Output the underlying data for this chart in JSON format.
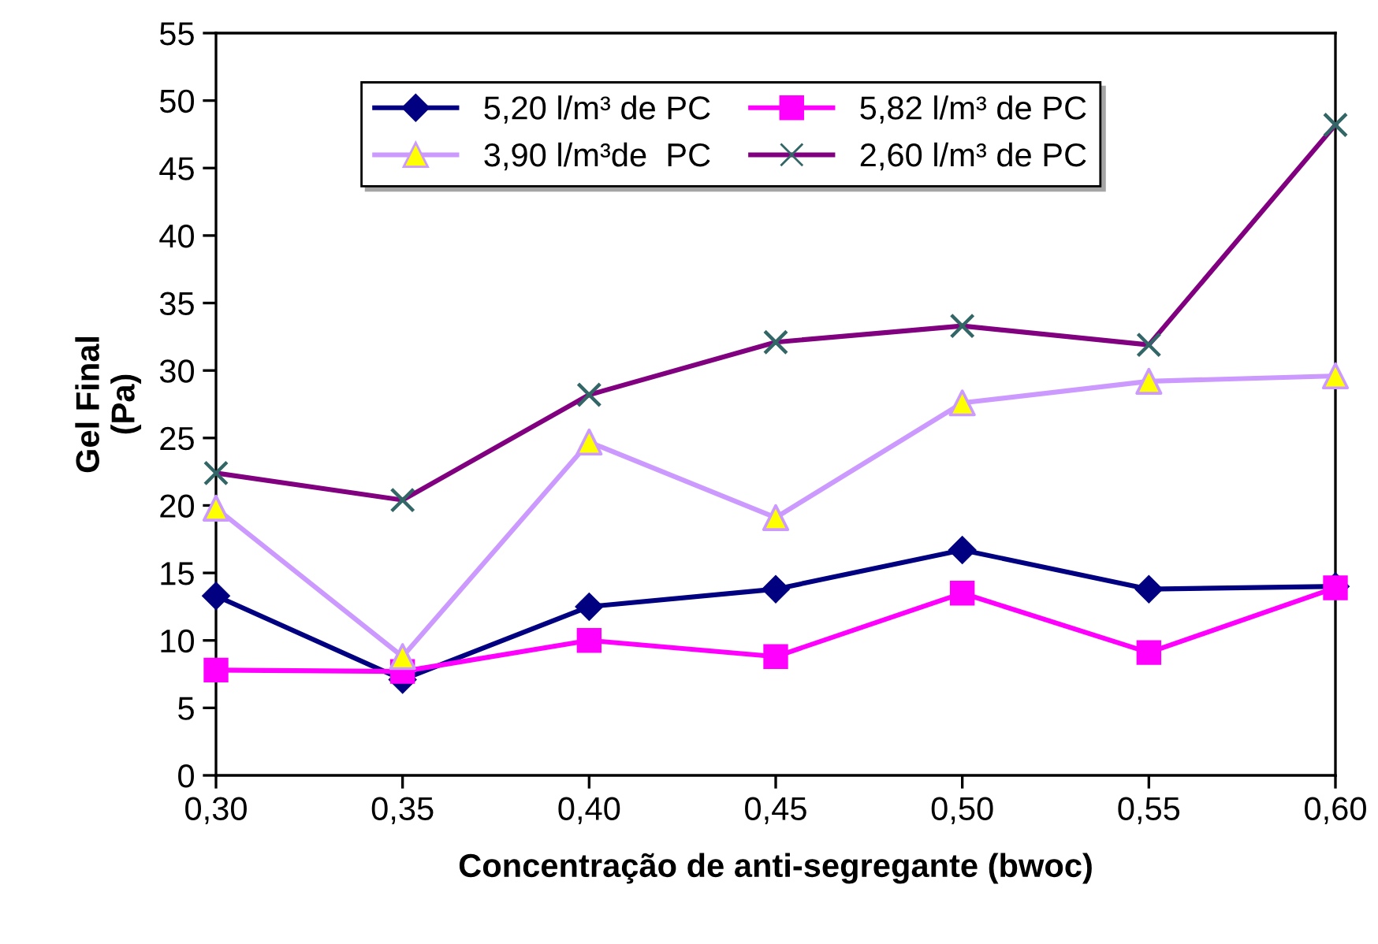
{
  "chart_data": {
    "type": "line",
    "xlabel": "Concentração de anti-segregante (bwoc)",
    "ylabel": "Gel Final\n(Pa)",
    "x": [
      0.3,
      0.35,
      0.4,
      0.45,
      0.5,
      0.55,
      0.6
    ],
    "xlim": [
      0.3,
      0.6
    ],
    "xticks": [
      {
        "value": 0.3,
        "label": "0,30"
      },
      {
        "value": 0.35,
        "label": "0,35"
      },
      {
        "value": 0.4,
        "label": "0,40"
      },
      {
        "value": 0.45,
        "label": "0,45"
      },
      {
        "value": 0.5,
        "label": "0,50"
      },
      {
        "value": 0.55,
        "label": "0,55"
      },
      {
        "value": 0.6,
        "label": "0,60"
      }
    ],
    "ylim": [
      0,
      55
    ],
    "yticks": [
      0,
      5,
      10,
      15,
      20,
      25,
      30,
      35,
      40,
      45,
      50,
      55
    ],
    "grid": false,
    "legend": "top",
    "line_style": "solid",
    "series": [
      {
        "name": "5,20 l/m³ de PC",
        "color": "#000080",
        "marker": "diamond",
        "values": [
          13.3,
          7.1,
          12.5,
          13.8,
          16.7,
          13.8,
          14.0
        ]
      },
      {
        "name": "3,90 l/m³de  PC",
        "color": "#cc99ff",
        "marker": "triangle",
        "colors": [
          "#ffff00",
          "#ffff00",
          "#ffff00",
          "#ffff00",
          "#ffff00",
          "#ffff00",
          "#ffff00"
        ],
        "values": [
          19.8,
          8.8,
          24.7,
          19.1,
          27.6,
          29.2,
          29.6
        ]
      },
      {
        "name": "5,82 l/m³ de PC",
        "color": "#ff00ff",
        "marker": "square",
        "values": [
          7.8,
          7.7,
          10.0,
          8.8,
          13.5,
          9.1,
          13.9
        ]
      },
      {
        "name": "2,60 l/m³ de PC",
        "color": "#800080",
        "marker": "cross",
        "colors": [
          "#336666",
          "#336666",
          "#336666",
          "#336666",
          "#336666",
          "#336666",
          "#336666"
        ],
        "values": [
          22.4,
          20.4,
          28.2,
          32.1,
          33.3,
          31.9,
          48.2
        ]
      }
    ]
  }
}
